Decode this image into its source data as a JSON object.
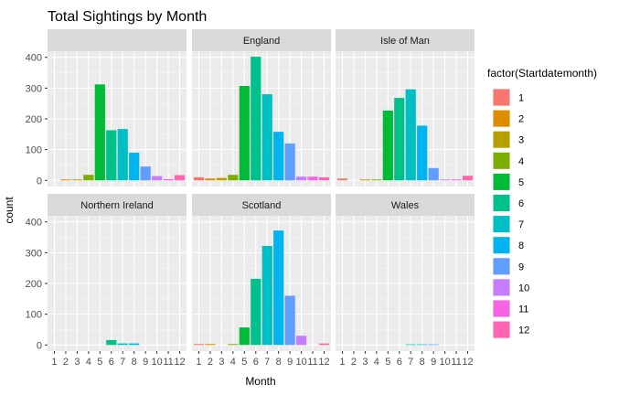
{
  "chart_data": {
    "type": "bar",
    "title": "Total Sightings by Month",
    "xlabel": "Month",
    "ylabel": "count",
    "categories": [
      "1",
      "2",
      "3",
      "4",
      "5",
      "6",
      "7",
      "8",
      "9",
      "10",
      "11",
      "12"
    ],
    "yticks": [
      0,
      100,
      200,
      300,
      400
    ],
    "ylim": [
      -20,
      420
    ],
    "legend": {
      "title": "factor(Startdatemonth)",
      "placement": "right",
      "labels": [
        "1",
        "2",
        "3",
        "4",
        "5",
        "6",
        "7",
        "8",
        "9",
        "10",
        "11",
        "12"
      ],
      "colors": [
        "#F8766D",
        "#DE8C00",
        "#B79F00",
        "#7CAE00",
        "#00BA38",
        "#00C08B",
        "#00BFC4",
        "#00B4F0",
        "#619CFF",
        "#C77CFF",
        "#F564E3",
        "#FF64B0"
      ]
    },
    "panels": [
      {
        "label": "",
        "values": [
          0,
          3,
          3,
          18,
          312,
          163,
          167,
          90,
          45,
          14,
          4,
          17
        ]
      },
      {
        "label": "England",
        "values": [
          10,
          6,
          8,
          18,
          307,
          402,
          280,
          158,
          120,
          12,
          12,
          10
        ]
      },
      {
        "label": "Isle of Man",
        "values": [
          6,
          0,
          3,
          3,
          227,
          268,
          296,
          178,
          40,
          3,
          3,
          15
        ]
      },
      {
        "label": "Northern Ireland",
        "values": [
          0,
          0,
          0,
          0,
          0,
          16,
          5,
          5,
          0,
          0,
          0,
          0
        ]
      },
      {
        "label": "Scotland",
        "values": [
          3,
          3,
          0,
          3,
          57,
          215,
          322,
          372,
          160,
          30,
          0,
          5
        ]
      },
      {
        "label": "Wales",
        "values": [
          0,
          0,
          0,
          0,
          0,
          0,
          2,
          2,
          2,
          0,
          0,
          0
        ]
      }
    ]
  }
}
